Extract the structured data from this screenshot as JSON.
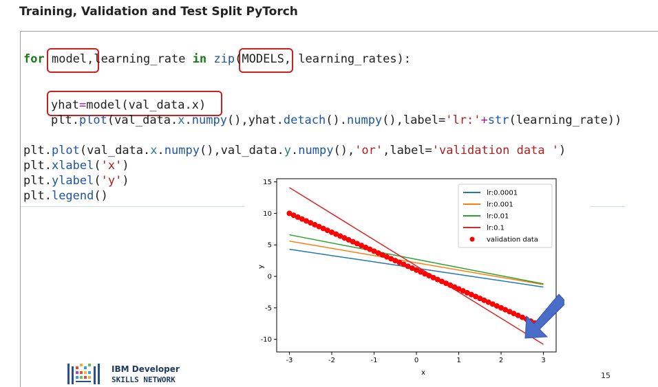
{
  "slide": {
    "title": "Training, Validation and Test Split PyTorch",
    "page_number": "15",
    "logo_line1": "IBM Developer",
    "logo_line2": "SKILLS NETWORK"
  },
  "code": {
    "l1": {
      "for": "for",
      "model": "model,",
      "rest1": "learning_rate ",
      "in": "in",
      "zip": "zip",
      "paren": "(",
      "models": "MODELS,",
      "rest2": " learning_rates):"
    },
    "l2": {
      "yhat": "yhat",
      "eq": "=",
      "rest": "model(val_data.x)"
    },
    "l3": {
      "plt": "plt.",
      "plot": "plot",
      "a": "(val_data.",
      "x": "x",
      "dot1": ".",
      "numpy1": "numpy",
      "b": "(),yhat.",
      "detach": "detach",
      "c": "().",
      "numpy2": "numpy",
      "d": "(),label=",
      "lrs": "'lr:'",
      "plus": "+",
      "str": "str",
      "e": "(learning_rate))"
    },
    "l4": {
      "plt": "plt.",
      "plot": "plot",
      "a": "(val_data.",
      "x": "x",
      "b": ".",
      "numpy1": "numpy",
      "c": "(),val_data.",
      "y": "y",
      "d": ".",
      "numpy2": "numpy",
      "e": "(),",
      "or": "'or'",
      "f": ",label=",
      "lbl": "'validation data '",
      "g": ")"
    },
    "l5": {
      "plt": "plt.",
      "fn": "xlabel",
      "a": "(",
      "s": "'x'",
      "b": ")"
    },
    "l6": {
      "plt": "plt.",
      "fn": "ylabel",
      "a": "(",
      "s": "'y'",
      "b": ")"
    },
    "l7": {
      "plt": "plt.",
      "fn": "legend",
      "a": "()"
    }
  },
  "colors": {
    "highlight": "#cc1e1e",
    "arrow": "#4a6cc9",
    "keyword": "#1a7a1a",
    "function": "#1d55a4",
    "string": "#b01d1d"
  },
  "chart_data": {
    "type": "line",
    "xlabel": "x",
    "ylabel": "y",
    "xlim": [
      -3.3,
      3.3
    ],
    "ylim": [
      -12,
      15.5
    ],
    "xticks": [
      "-3",
      "-2",
      "-1",
      "0",
      "1",
      "2",
      "3"
    ],
    "yticks": [
      "15",
      "10",
      "5",
      "0",
      "-5",
      "-10"
    ],
    "legend_position": "top-right",
    "series": [
      {
        "name": "lr:0.0001",
        "color": "#1f77b4",
        "x": [
          -3,
          3
        ],
        "y": [
          4.3,
          -1.7
        ]
      },
      {
        "name": "lr:0.001",
        "color": "#ff7f0e",
        "x": [
          -3,
          3
        ],
        "y": [
          5.6,
          -1.3
        ]
      },
      {
        "name": "lr:0.01",
        "color": "#2ca02c",
        "x": [
          -3,
          3
        ],
        "y": [
          6.6,
          -1.2
        ]
      },
      {
        "name": "lr:0.1",
        "color": "#d62728",
        "x": [
          -3,
          3
        ],
        "y": [
          14.1,
          -10.8
        ]
      }
    ],
    "scatter": {
      "name": "validation data",
      "color": "#ff0000",
      "x_start": -3,
      "x_end": 2.9,
      "step": 0.1,
      "slope": -3,
      "intercept": 1
    }
  }
}
